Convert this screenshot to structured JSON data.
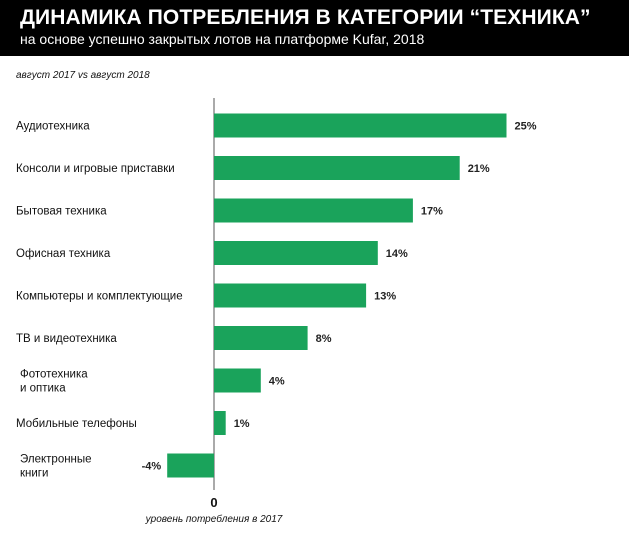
{
  "header": {
    "title": "ДИНАМИКА ПОТРЕБЛЕНИЯ В КАТЕГОРИИ “ТЕХНИКА”",
    "subtitle": "на основе успешно закрытых лотов на платформе Kufar, 2018",
    "period": "август 2017 vs август 2018"
  },
  "chart_data": {
    "type": "bar",
    "orientation": "horizontal",
    "categories": [
      [
        "Аудиотехника"
      ],
      [
        "Консоли и игровые приставки"
      ],
      [
        "Бытовая техника"
      ],
      [
        "Офисная техника"
      ],
      [
        "Компьютеры и комплектующие"
      ],
      [
        "ТВ и видеотехника"
      ],
      [
        "Фототехника",
        "и оптика"
      ],
      [
        "Мобильные телефоны"
      ],
      [
        "Электронные",
        "книги"
      ]
    ],
    "values": [
      25,
      21,
      17,
      14,
      13,
      8,
      4,
      1,
      -4
    ],
    "value_labels": [
      "25%",
      "21%",
      "17%",
      "14%",
      "13%",
      "8%",
      "4%",
      "1%",
      "-4%"
    ],
    "zero_label": "0",
    "baseline_label": "уровень потребления в 2017",
    "bar_color": "#1aa35b",
    "axis_line_color": "#555555"
  }
}
